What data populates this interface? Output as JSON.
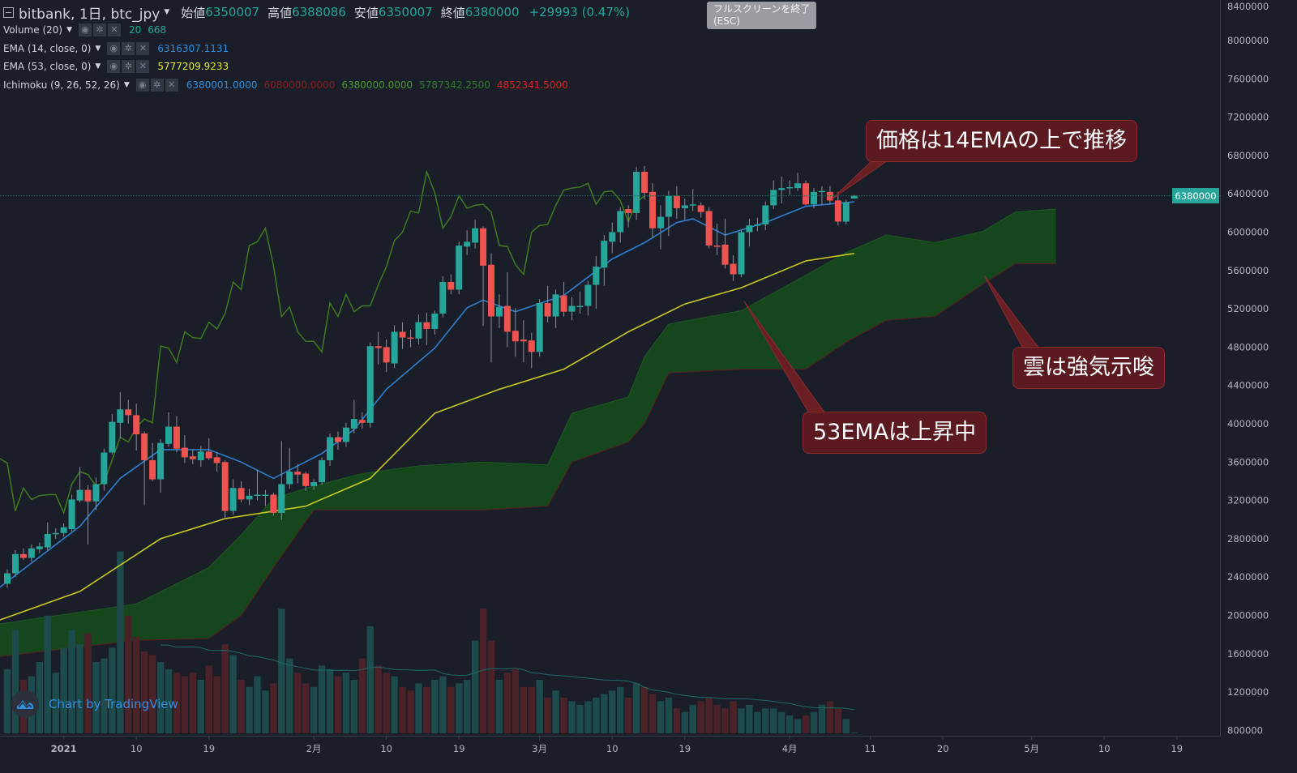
{
  "header": {
    "symbol_title": "bitbank, 1日, btc_jpy",
    "open_label": "始値",
    "open": "6350007",
    "high_label": "高値",
    "high": "6388086",
    "low_label": "安値",
    "low": "6350007",
    "close_label": "終値",
    "close": "6380000",
    "change": "+29993 (0.47%)"
  },
  "tooltip": {
    "line1": "フルスクリーンを終了",
    "line2": "(ESC)"
  },
  "indicators": [
    {
      "label": "Volume (20)",
      "values": [
        {
          "text": "20",
          "color": "#26a69a"
        },
        {
          "text": "668",
          "color": "#26a69a"
        }
      ]
    },
    {
      "label": "EMA (14, close, 0)",
      "values": [
        {
          "text": "6316307.1131",
          "color": "#2f8fe0"
        }
      ]
    },
    {
      "label": "EMA (53, close, 0)",
      "values": [
        {
          "text": "5777209.9233",
          "color": "#e8e82a"
        }
      ]
    },
    {
      "label": "Ichimoku (9, 26, 52, 26)",
      "values": [
        {
          "text": "6380001.0000",
          "color": "#2f8fe0"
        },
        {
          "text": "6080000.0000",
          "color": "#8b1d1d"
        },
        {
          "text": "6380000.0000",
          "color": "#4c9a2a"
        },
        {
          "text": "5787342.2500",
          "color": "#2f7a2a"
        },
        {
          "text": "4852341.5000",
          "color": "#e02020"
        }
      ]
    }
  ],
  "indicator_icons": [
    "eye-icon",
    "gear-icon",
    "close-icon"
  ],
  "annotations": [
    {
      "text": "価格は14EMAの上で推移"
    },
    {
      "text": "雲は強気示唆"
    },
    {
      "text": "53EMAは上昇中"
    }
  ],
  "branding": "Chart by TradingView",
  "chart_data": {
    "type": "candlestick",
    "title": "bitbank, 1日, btc_jpy",
    "first_date": "2020-12-25",
    "ylim": [
      800000,
      8400000
    ],
    "y_ticks": [
      "8400000",
      "8000000",
      "7600000",
      "7200000",
      "6800000",
      "6400000",
      "6000000",
      "5600000",
      "5200000",
      "4800000",
      "4400000",
      "4000000",
      "3600000",
      "3200000",
      "2800000",
      "2400000",
      "2000000",
      "1600000",
      "1200000",
      "800000"
    ],
    "last_price_label": "6380000",
    "x_ticks": [
      {
        "label": "2021",
        "date": "2021-01-01"
      },
      {
        "label": "10",
        "date": "2021-01-10"
      },
      {
        "label": "19",
        "date": "2021-01-19"
      },
      {
        "label": "2月",
        "date": "2021-02-01"
      },
      {
        "label": "10",
        "date": "2021-02-10"
      },
      {
        "label": "19",
        "date": "2021-02-19"
      },
      {
        "label": "3月",
        "date": "2021-03-01"
      },
      {
        "label": "10",
        "date": "2021-03-10"
      },
      {
        "label": "19",
        "date": "2021-03-19"
      },
      {
        "label": "4月",
        "date": "2021-04-01"
      },
      {
        "label": "11",
        "date": "2021-04-11"
      },
      {
        "label": "20",
        "date": "2021-04-20"
      },
      {
        "label": "5月",
        "date": "2021-05-01"
      },
      {
        "label": "10",
        "date": "2021-05-10"
      },
      {
        "label": "19",
        "date": "2021-05-19"
      }
    ],
    "colors": {
      "up": "#26a69a",
      "down": "#ef5350",
      "ema14": "#2f7fd0",
      "ema53": "#c8c81e",
      "lagging": "#3f7a1e",
      "cloud": "#15461c",
      "vol_up": "#1d4a4a",
      "vol_down": "#4a2228",
      "vol_ma": "#1f6a66",
      "last_price": "#26a69a"
    },
    "ohlc": [
      [
        2330000,
        2480000,
        2290000,
        2440000
      ],
      [
        2440000,
        2680000,
        2400000,
        2640000
      ],
      [
        2640000,
        2700000,
        2580000,
        2600000
      ],
      [
        2600000,
        2740000,
        2560000,
        2700000
      ],
      [
        2690000,
        2760000,
        2650000,
        2720000
      ],
      [
        2710000,
        2970000,
        2680000,
        2850000
      ],
      [
        2850000,
        2910000,
        2800000,
        2860000
      ],
      [
        2860000,
        2960000,
        2820000,
        2920000
      ],
      [
        2900000,
        3260000,
        2880000,
        3210000
      ],
      [
        3200000,
        3550000,
        3180000,
        3310000
      ],
      [
        3310000,
        3360000,
        2740000,
        3190000
      ],
      [
        3190000,
        3440000,
        3100000,
        3370000
      ],
      [
        3370000,
        3740000,
        3300000,
        3700000
      ],
      [
        3700000,
        4100000,
        3680000,
        4020000
      ],
      [
        4010000,
        4330000,
        3850000,
        4150000
      ],
      [
        4150000,
        4250000,
        4000000,
        4090000
      ],
      [
        4090000,
        4210000,
        3720000,
        3890000
      ],
      [
        3900000,
        3920000,
        3150000,
        3620000
      ],
      [
        3620000,
        3800000,
        3400000,
        3420000
      ],
      [
        3420000,
        3840000,
        3280000,
        3800000
      ],
      [
        3790000,
        4120000,
        3760000,
        3970000
      ],
      [
        3970000,
        4080000,
        3700000,
        3740000
      ],
      [
        3750000,
        3880000,
        3590000,
        3650000
      ],
      [
        3660000,
        3730000,
        3580000,
        3630000
      ],
      [
        3620000,
        3770000,
        3550000,
        3710000
      ],
      [
        3710000,
        3850000,
        3620000,
        3640000
      ],
      [
        3650000,
        3700000,
        3500000,
        3590000
      ],
      [
        3600000,
        3620000,
        3010000,
        3090000
      ],
      [
        3090000,
        3420000,
        3050000,
        3330000
      ],
      [
        3330000,
        3400000,
        3180000,
        3210000
      ],
      [
        3210000,
        3320000,
        3150000,
        3250000
      ],
      [
        3250000,
        3520000,
        3200000,
        3260000
      ],
      [
        3260000,
        3310000,
        3140000,
        3260000
      ],
      [
        3260000,
        3280000,
        3040000,
        3070000
      ],
      [
        3070000,
        3820000,
        3000000,
        3370000
      ],
      [
        3370000,
        3750000,
        3320000,
        3500000
      ],
      [
        3500000,
        3580000,
        3380000,
        3470000
      ],
      [
        3480000,
        3500000,
        3300000,
        3350000
      ],
      [
        3350000,
        3420000,
        3310000,
        3390000
      ],
      [
        3390000,
        3650000,
        3360000,
        3620000
      ],
      [
        3620000,
        3900000,
        3560000,
        3860000
      ],
      [
        3860000,
        3920000,
        3730000,
        3810000
      ],
      [
        3810000,
        4010000,
        3760000,
        3960000
      ],
      [
        3950000,
        4250000,
        3900000,
        4050000
      ],
      [
        4040000,
        4120000,
        3950000,
        4010000
      ],
      [
        4010000,
        4850000,
        3960000,
        4810000
      ],
      [
        4810000,
        4960000,
        4620000,
        4790000
      ],
      [
        4800000,
        4880000,
        4540000,
        4640000
      ],
      [
        4630000,
        5030000,
        4580000,
        4960000
      ],
      [
        4960000,
        5060000,
        4780000,
        4900000
      ],
      [
        4900000,
        4980000,
        4800000,
        4890000
      ],
      [
        4890000,
        5140000,
        4830000,
        5060000
      ],
      [
        5060000,
        5160000,
        4820000,
        4990000
      ],
      [
        4990000,
        5180000,
        4930000,
        5150000
      ],
      [
        5150000,
        5540000,
        5110000,
        5480000
      ],
      [
        5480000,
        5560000,
        5350000,
        5400000
      ],
      [
        5400000,
        5900000,
        5350000,
        5860000
      ],
      [
        5850000,
        6020000,
        5760000,
        5900000
      ],
      [
        5890000,
        6130000,
        5830000,
        6040000
      ],
      [
        6040000,
        6060000,
        5020000,
        5650000
      ],
      [
        5660000,
        5780000,
        4640000,
        5120000
      ],
      [
        5120000,
        5350000,
        5000000,
        5220000
      ],
      [
        5230000,
        5580000,
        4800000,
        4960000
      ],
      [
        4970000,
        5210000,
        4700000,
        4860000
      ],
      [
        4880000,
        5080000,
        4640000,
        4860000
      ],
      [
        4870000,
        4950000,
        4580000,
        4750000
      ],
      [
        4750000,
        5300000,
        4700000,
        5260000
      ],
      [
        5260000,
        5440000,
        5060000,
        5120000
      ],
      [
        5120000,
        5400000,
        5000000,
        5350000
      ],
      [
        5340000,
        5480000,
        5120000,
        5170000
      ],
      [
        5170000,
        5320000,
        5080000,
        5230000
      ],
      [
        5220000,
        5380000,
        5150000,
        5230000
      ],
      [
        5230000,
        5490000,
        5130000,
        5450000
      ],
      [
        5450000,
        5750000,
        5200000,
        5640000
      ],
      [
        5630000,
        5970000,
        5440000,
        5910000
      ],
      [
        5900000,
        6100000,
        5780000,
        6000000
      ],
      [
        6000000,
        6260000,
        5890000,
        6220000
      ],
      [
        6240000,
        6280000,
        6050000,
        6200000
      ],
      [
        6200000,
        6680000,
        6130000,
        6630000
      ],
      [
        6630000,
        6690000,
        6340000,
        6410000
      ],
      [
        6420000,
        6510000,
        5940000,
        6040000
      ],
      [
        6040000,
        6280000,
        5820000,
        6160000
      ],
      [
        6160000,
        6430000,
        5960000,
        6380000
      ],
      [
        6380000,
        6480000,
        6140000,
        6250000
      ],
      [
        6250000,
        6350000,
        6130000,
        6280000
      ],
      [
        6280000,
        6450000,
        6220000,
        6290000
      ],
      [
        6280000,
        6310000,
        6150000,
        6210000
      ],
      [
        6220000,
        6260000,
        5830000,
        5860000
      ],
      [
        5860000,
        6090000,
        5760000,
        5850000
      ],
      [
        5870000,
        6140000,
        5620000,
        5660000
      ],
      [
        5670000,
        5760000,
        5490000,
        5560000
      ],
      [
        5560000,
        6020000,
        5530000,
        6000000
      ],
      [
        6000000,
        6140000,
        5850000,
        6070000
      ],
      [
        6070000,
        6150000,
        6010000,
        6080000
      ],
      [
        6080000,
        6320000,
        6020000,
        6280000
      ],
      [
        6280000,
        6540000,
        6240000,
        6440000
      ],
      [
        6440000,
        6580000,
        6300000,
        6460000
      ],
      [
        6460000,
        6540000,
        6390000,
        6470000
      ],
      [
        6460000,
        6620000,
        6430000,
        6510000
      ],
      [
        6510000,
        6540000,
        6280000,
        6290000
      ],
      [
        6290000,
        6460000,
        6250000,
        6420000
      ],
      [
        6420000,
        6480000,
        6280000,
        6430000
      ],
      [
        6420000,
        6480000,
        6290000,
        6330000
      ],
      [
        6330000,
        6420000,
        6070000,
        6110000
      ],
      [
        6110000,
        6340000,
        6080000,
        6310000
      ],
      [
        6350007,
        6388086,
        6350007,
        6380000
      ]
    ],
    "volume": [
      1800,
      2900,
      1500,
      1600,
      2000,
      3300,
      1700,
      2400,
      2900,
      2500,
      2800,
      2000,
      2100,
      2400,
      5100,
      3300,
      2700,
      2300,
      2200,
      2000,
      1800,
      1700,
      1600,
      1700,
      1500,
      1900,
      1600,
      2500,
      2200,
      1500,
      1300,
      1600,
      1200,
      1400,
      3500,
      2100,
      1700,
      1400,
      1300,
      1900,
      1800,
      1600,
      1700,
      1500,
      2100,
      3000,
      1900,
      1700,
      1600,
      1300,
      1200,
      1400,
      1300,
      1500,
      1600,
      1300,
      1400,
      1500,
      2600,
      3500,
      2600,
      1500,
      1700,
      1800,
      1300,
      1300,
      1500,
      1000,
      1200,
      1000,
      900,
      800,
      900,
      1000,
      1100,
      1200,
      1300,
      1000,
      1400,
      1300,
      1100,
      900,
      1000,
      700,
      600,
      800,
      900,
      1000,
      800,
      700,
      900,
      700,
      800,
      600,
      700,
      700,
      600,
      500,
      400,
      500,
      600,
      800,
      900,
      700,
      400,
      20
    ],
    "ema14": [
      [
        "2020-12-24",
        2290000
      ],
      [
        "2021-01-03",
        2930000
      ],
      [
        "2021-01-08",
        3430000
      ],
      [
        "2021-01-13",
        3730000
      ],
      [
        "2021-01-19",
        3730000
      ],
      [
        "2021-01-23",
        3600000
      ],
      [
        "2021-01-27",
        3430000
      ],
      [
        "2021-02-02",
        3690000
      ],
      [
        "2021-02-06",
        3940000
      ],
      [
        "2021-02-10",
        4360000
      ],
      [
        "2021-02-16",
        4790000
      ],
      [
        "2021-02-20",
        5210000
      ],
      [
        "2021-02-22",
        5290000
      ],
      [
        "2021-02-26",
        5170000
      ],
      [
        "2021-03-04",
        5340000
      ],
      [
        "2021-03-10",
        5720000
      ],
      [
        "2021-03-14",
        5890000
      ],
      [
        "2021-03-18",
        6100000
      ],
      [
        "2021-03-20",
        6140000
      ],
      [
        "2021-03-24",
        5970000
      ],
      [
        "2021-03-29",
        6100000
      ],
      [
        "2021-04-03",
        6270000
      ],
      [
        "2021-04-09",
        6316307
      ]
    ],
    "ema53": [
      [
        "2020-12-24",
        1950000
      ],
      [
        "2021-01-03",
        2250000
      ],
      [
        "2021-01-13",
        2800000
      ],
      [
        "2021-01-21",
        3010000
      ],
      [
        "2021-01-31",
        3140000
      ],
      [
        "2021-02-08",
        3430000
      ],
      [
        "2021-02-16",
        4110000
      ],
      [
        "2021-02-24",
        4360000
      ],
      [
        "2021-03-04",
        4570000
      ],
      [
        "2021-03-12",
        4960000
      ],
      [
        "2021-03-19",
        5250000
      ],
      [
        "2021-03-26",
        5420000
      ],
      [
        "2021-04-03",
        5700000
      ],
      [
        "2021-04-09",
        5777210
      ]
    ],
    "ichimoku_cloud": {
      "span_a": [
        [
          "2020-12-24",
          1910000
        ],
        [
          "2021-01-10",
          2120000
        ],
        [
          "2021-01-19",
          2500000
        ],
        [
          "2021-01-23",
          2840000
        ],
        [
          "2021-01-27",
          3220000
        ],
        [
          "2021-02-01",
          3350000
        ],
        [
          "2021-02-07",
          3480000
        ],
        [
          "2021-02-14",
          3560000
        ],
        [
          "2021-02-22",
          3600000
        ],
        [
          "2021-03-02",
          3570000
        ],
        [
          "2021-03-05",
          4110000
        ],
        [
          "2021-03-12",
          4280000
        ],
        [
          "2021-03-14",
          4700000
        ],
        [
          "2021-03-17",
          5040000
        ],
        [
          "2021-03-26",
          5180000
        ],
        [
          "2021-04-03",
          5550000
        ],
        [
          "2021-04-08",
          5787342
        ],
        [
          "2021-04-13",
          5970000
        ],
        [
          "2021-04-19",
          5890000
        ],
        [
          "2021-04-25",
          6010000
        ],
        [
          "2021-04-29",
          6210000
        ],
        [
          "2021-05-04",
          6240000
        ]
      ],
      "span_b": [
        [
          "2020-12-24",
          1570000
        ],
        [
          "2021-01-10",
          1740000
        ],
        [
          "2021-01-19",
          1760000
        ],
        [
          "2021-01-23",
          2000000
        ],
        [
          "2021-01-27",
          2500000
        ],
        [
          "2021-02-01",
          3100000
        ],
        [
          "2021-02-07",
          3100000
        ],
        [
          "2021-02-14",
          3100000
        ],
        [
          "2021-02-22",
          3100000
        ],
        [
          "2021-03-02",
          3140000
        ],
        [
          "2021-03-05",
          3600000
        ],
        [
          "2021-03-12",
          3810000
        ],
        [
          "2021-03-14",
          4000000
        ],
        [
          "2021-03-17",
          4530000
        ],
        [
          "2021-03-26",
          4570000
        ],
        [
          "2021-04-03",
          4570000
        ],
        [
          "2021-04-08",
          4852341
        ],
        [
          "2021-04-13",
          5080000
        ],
        [
          "2021-04-19",
          5120000
        ],
        [
          "2021-04-25",
          5460000
        ],
        [
          "2021-04-29",
          5670000
        ],
        [
          "2021-05-04",
          5670000
        ]
      ],
      "lagging_shift_days": 26
    },
    "grid": false,
    "legend": "top-left"
  }
}
